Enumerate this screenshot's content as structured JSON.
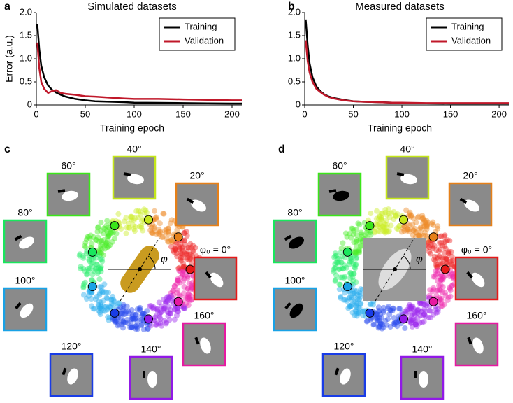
{
  "chart_data": [
    {
      "type": "line",
      "panel": "a",
      "title": "Simulated datasets",
      "xlabel": "Training epoch",
      "ylabel": "Error (a.u.)",
      "x": [
        1,
        3,
        5,
        8,
        12,
        16,
        20,
        25,
        30,
        40,
        50,
        60,
        75,
        90,
        100,
        125,
        150,
        175,
        200,
        210
      ],
      "series": [
        {
          "name": "Training",
          "color": "#000000",
          "values": [
            1.75,
            1.2,
            0.85,
            0.6,
            0.42,
            0.33,
            0.27,
            0.22,
            0.18,
            0.13,
            0.1,
            0.08,
            0.07,
            0.06,
            0.05,
            0.045,
            0.04,
            0.035,
            0.03,
            0.03
          ]
        },
        {
          "name": "Validation",
          "color": "#c0182a",
          "values": [
            1.35,
            0.8,
            0.5,
            0.35,
            0.26,
            0.3,
            0.32,
            0.26,
            0.24,
            0.22,
            0.19,
            0.18,
            0.16,
            0.14,
            0.13,
            0.13,
            0.12,
            0.11,
            0.1,
            0.1
          ]
        }
      ],
      "xlim": [
        0,
        210
      ],
      "ylim": [
        0,
        2
      ],
      "xticks": [
        0,
        50,
        100,
        150,
        200
      ],
      "yticks": [
        0,
        0.5,
        {
          "value": 1,
          "label": "1.0"
        },
        1.5,
        {
          "value": 2,
          "label": "2.0"
        }
      ],
      "legend": "upper right"
    },
    {
      "type": "line",
      "panel": "b",
      "title": "Measured datasets",
      "xlabel": "Training epoch",
      "ylabel": null,
      "x": [
        1,
        3,
        5,
        8,
        12,
        16,
        20,
        25,
        30,
        40,
        50,
        60,
        75,
        90,
        100,
        125,
        150,
        175,
        200,
        210
      ],
      "series": [
        {
          "name": "Training",
          "color": "#000000",
          "values": [
            1.85,
            1.3,
            0.9,
            0.6,
            0.4,
            0.3,
            0.23,
            0.18,
            0.15,
            0.11,
            0.08,
            0.07,
            0.06,
            0.05,
            0.04,
            0.035,
            0.03,
            0.03,
            0.03,
            0.03
          ]
        },
        {
          "name": "Validation",
          "color": "#c0182a",
          "values": [
            1.4,
            0.95,
            0.7,
            0.5,
            0.35,
            0.28,
            0.22,
            0.17,
            0.14,
            0.1,
            0.08,
            0.07,
            0.06,
            0.05,
            0.05,
            0.04,
            0.04,
            0.04,
            0.04,
            0.04
          ]
        }
      ],
      "xlim": [
        0,
        210
      ],
      "ylim": [
        0,
        2
      ],
      "xticks": [
        0,
        50,
        100,
        150,
        200
      ],
      "yticks": [
        0,
        0.5,
        {
          "value": 1,
          "label": "1.0"
        },
        1.5,
        {
          "value": 2,
          "label": "2.0"
        }
      ],
      "legend": "upper right"
    }
  ],
  "diagrams": [
    {
      "panel": "c",
      "center_label": "φ",
      "angles": [
        "φ₀ = 0°",
        "20°",
        "40°",
        "60°",
        "80°",
        "100°",
        "120°",
        "140°",
        "160°"
      ]
    },
    {
      "panel": "d",
      "center_label": "φ",
      "angles": [
        "φ₀ = 0°",
        "20°",
        "40°",
        "60°",
        "80°",
        "100°",
        "120°",
        "140°",
        "160°"
      ]
    }
  ]
}
